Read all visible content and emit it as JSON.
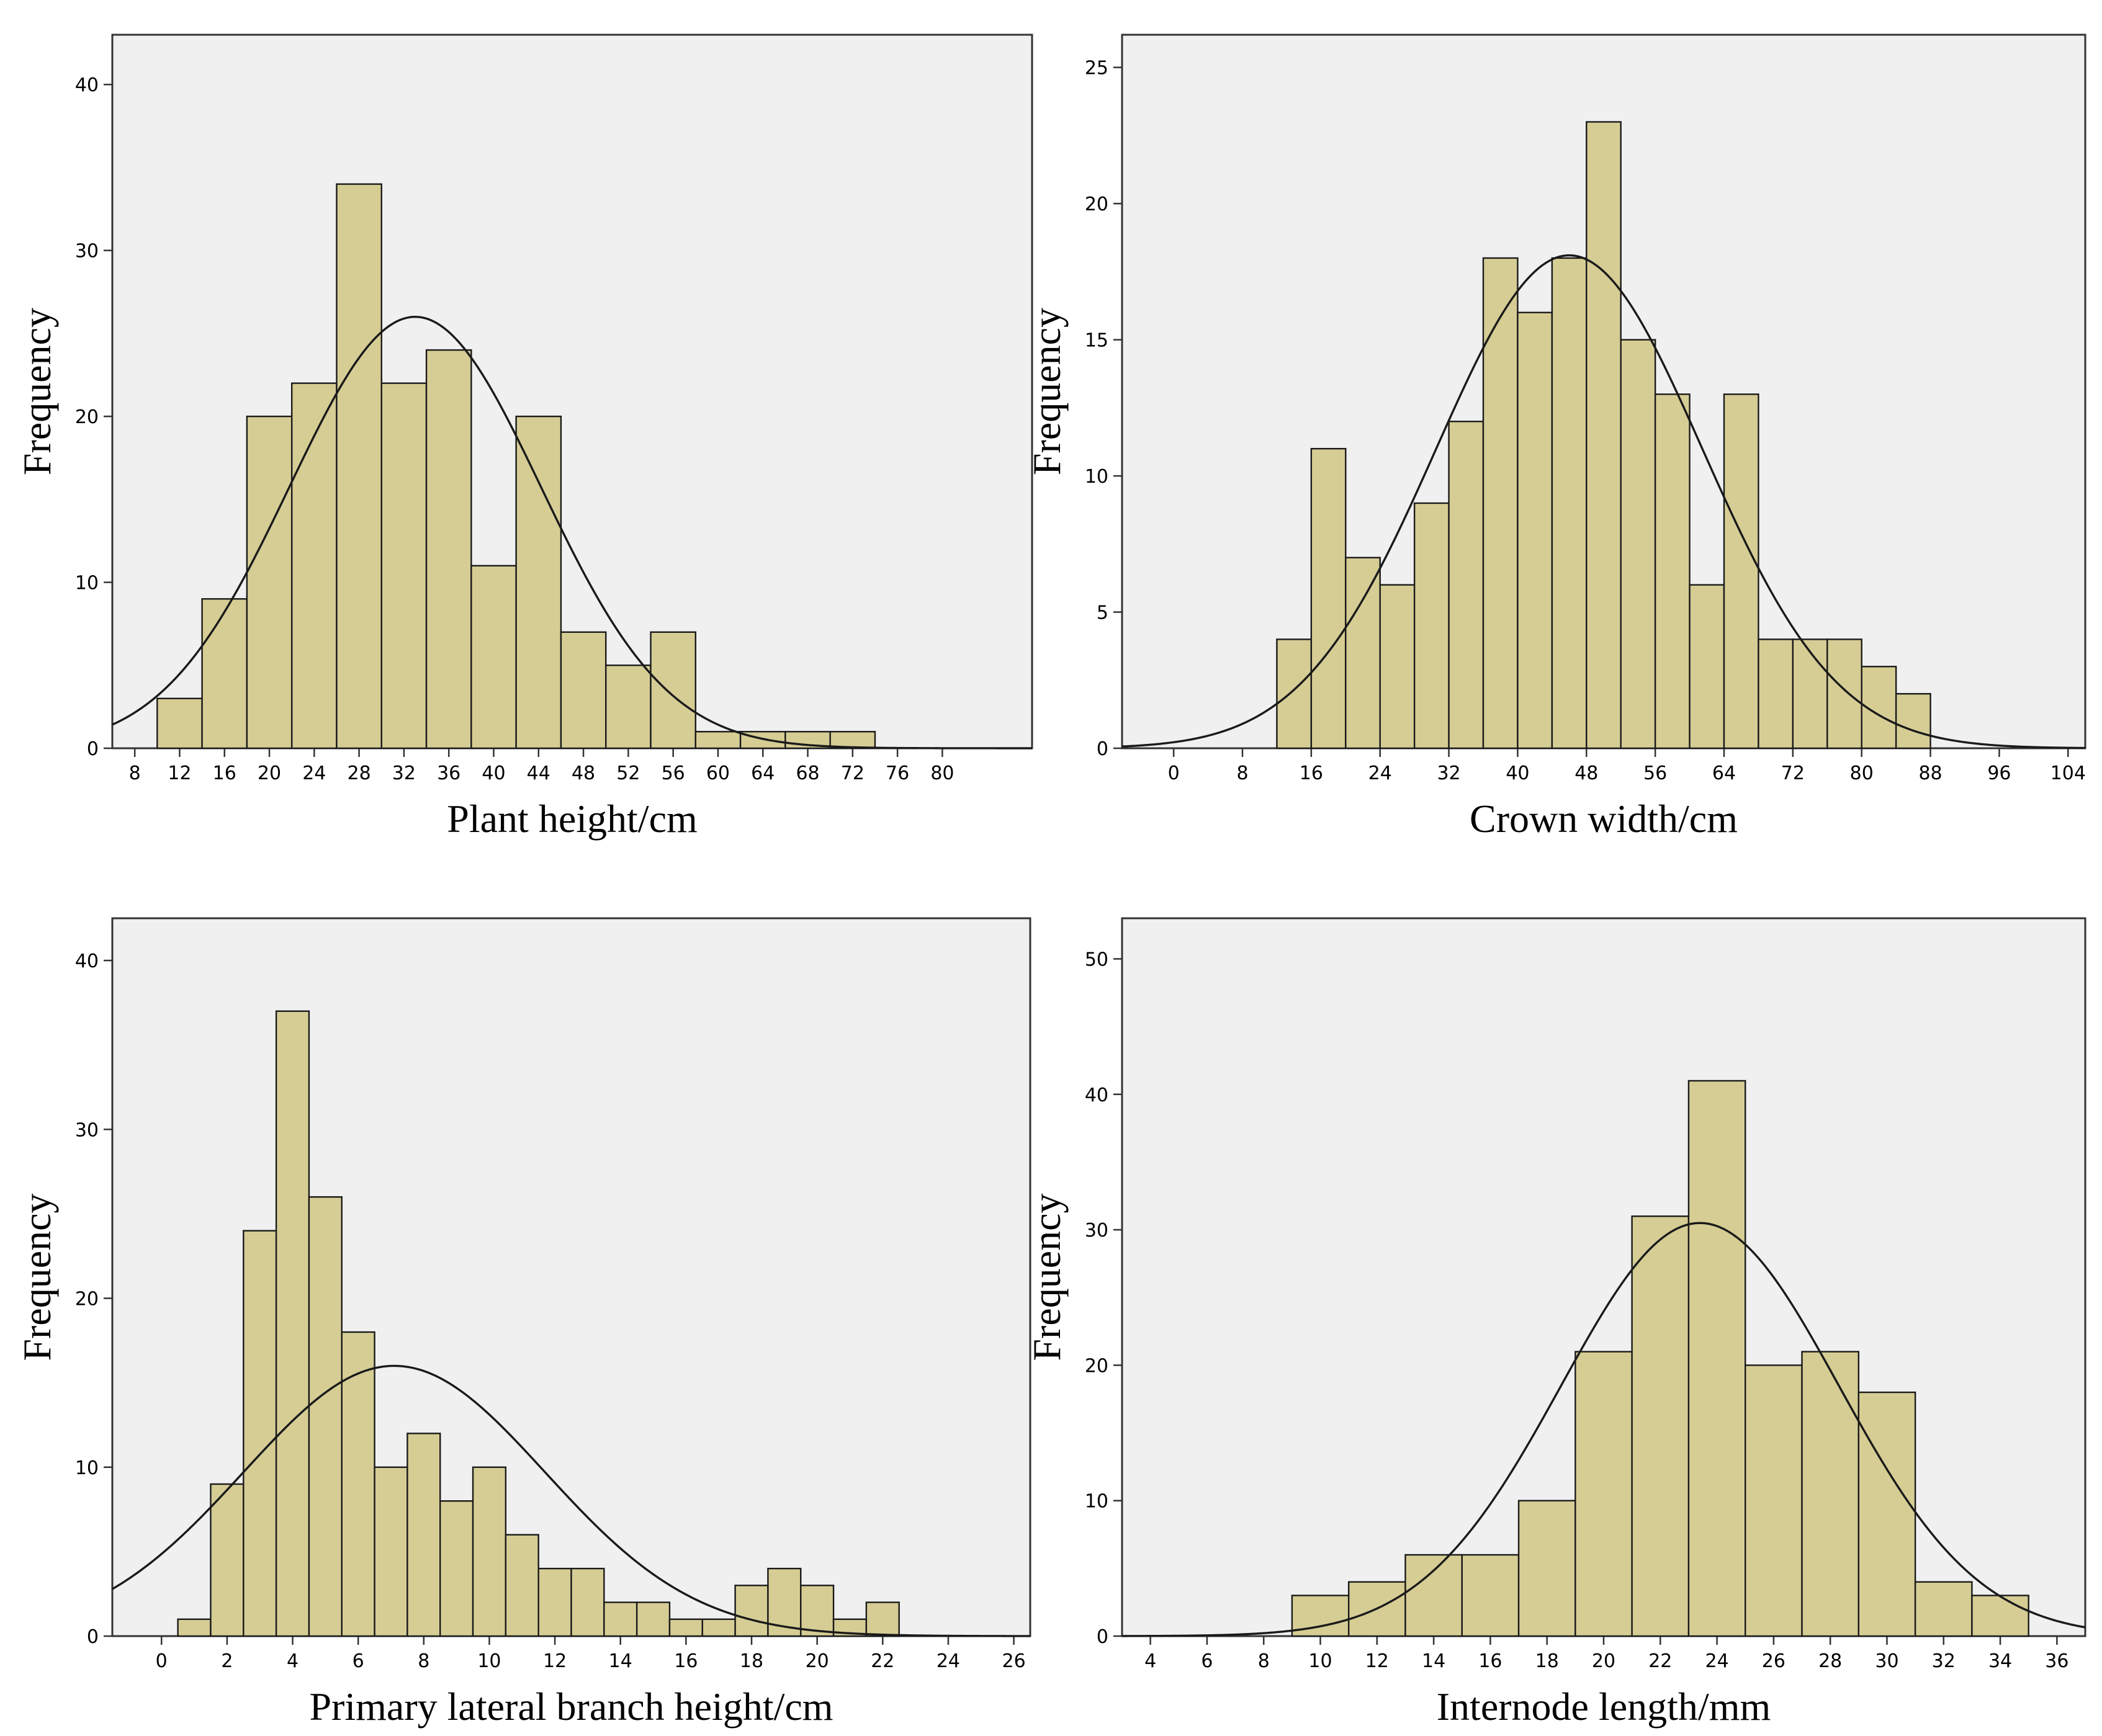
{
  "figure": {
    "background": "#ffffff",
    "plot_background": "#f0f0f0",
    "bar_color": "#d6cd95",
    "line_color": "#1a1a1a"
  },
  "chart_data": [
    {
      "id": "plant-height",
      "type": "histogram",
      "xlabel": "Plant height/cm",
      "ylabel": "Frequency",
      "xlim": [
        6,
        88
      ],
      "ylim": [
        0,
        43
      ],
      "xticks": [
        8,
        12,
        16,
        20,
        24,
        28,
        32,
        36,
        40,
        44,
        48,
        52,
        56,
        60,
        64,
        68,
        72,
        76,
        80
      ],
      "yticks": [
        0,
        10,
        20,
        30,
        40
      ],
      "bin_edges": [
        10,
        14,
        18,
        22,
        26,
        30,
        34,
        38,
        42,
        46,
        50,
        54,
        58,
        62,
        66,
        70,
        74
      ],
      "values": [
        3,
        9,
        20,
        22,
        34,
        22,
        24,
        11,
        20,
        7,
        5,
        7,
        1,
        1,
        1,
        1
      ],
      "normal_curve": {
        "mean": 33.0,
        "sd": 11.2,
        "peak": 26
      }
    },
    {
      "id": "crown-width",
      "type": "histogram",
      "xlabel": "Crown width/cm",
      "ylabel": "Frequency",
      "xlim": [
        -6,
        106
      ],
      "ylim": [
        0,
        26.2
      ],
      "xticks": [
        0,
        8,
        16,
        24,
        32,
        40,
        48,
        56,
        64,
        72,
        80,
        88,
        96,
        104
      ],
      "yticks": [
        0,
        5,
        10,
        15,
        20,
        25
      ],
      "bin_edges": [
        12,
        16,
        20,
        24,
        28,
        32,
        36,
        40,
        44,
        48,
        52,
        56,
        60,
        64,
        68,
        72,
        76,
        80,
        84,
        88
      ],
      "values": [
        4,
        11,
        7,
        6,
        9,
        12,
        18,
        16,
        18,
        23,
        15,
        13,
        6,
        13,
        4,
        4,
        4,
        3,
        2
      ],
      "normal_curve": {
        "mean": 46,
        "sd": 15.5,
        "peak": 18.1
      }
    },
    {
      "id": "primary-lateral-branch-height",
      "type": "histogram",
      "xlabel": "Primary lateral branch height/cm",
      "ylabel": "Frequency",
      "xlim": [
        -1.5,
        26.5
      ],
      "ylim": [
        0,
        42.5
      ],
      "xticks": [
        0,
        2,
        4,
        6,
        8,
        10,
        12,
        14,
        16,
        18,
        20,
        22,
        24,
        26
      ],
      "yticks": [
        0,
        10,
        20,
        30,
        40
      ],
      "bin_edges": [
        0.5,
        1.5,
        2.5,
        3.5,
        4.5,
        5.5,
        6.5,
        7.5,
        8.5,
        9.5,
        10.5,
        11.5,
        12.5,
        13.5,
        14.5,
        15.5,
        16.5,
        17.5,
        18.5,
        19.5,
        20.5,
        21.5,
        22.5
      ],
      "values": [
        1,
        9,
        24,
        37,
        26,
        18,
        10,
        12,
        8,
        10,
        6,
        4,
        4,
        2,
        2,
        1,
        1,
        3,
        4,
        3,
        1,
        2
      ],
      "normal_curve": {
        "mean": 7.1,
        "sd": 4.6,
        "peak": 16
      }
    },
    {
      "id": "internode-length",
      "type": "histogram",
      "xlabel": "Internode length/mm",
      "ylabel": "Frequency",
      "xlim": [
        3,
        37
      ],
      "ylim": [
        0,
        53
      ],
      "xticks": [
        4,
        6,
        8,
        10,
        12,
        14,
        16,
        18,
        20,
        22,
        24,
        26,
        28,
        30,
        32,
        34,
        36
      ],
      "yticks": [
        0,
        10,
        20,
        30,
        40,
        50
      ],
      "bin_edges": [
        9,
        11,
        13,
        15,
        17,
        19,
        21,
        23,
        25,
        27,
        29,
        31,
        33,
        35
      ],
      "values": [
        3,
        4,
        6,
        6,
        10,
        21,
        31,
        41,
        20,
        21,
        18,
        4,
        3
      ],
      "normal_curve": {
        "mean": 23.4,
        "sd": 4.9,
        "peak": 30.5
      }
    }
  ]
}
